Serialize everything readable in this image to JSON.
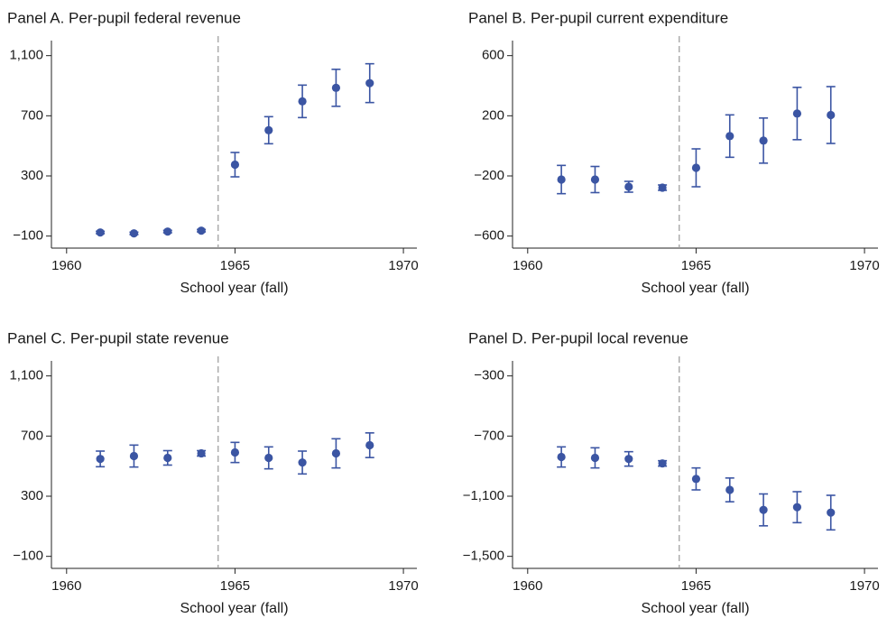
{
  "chart_data": [
    {
      "type": "scatter",
      "title": "Panel A. Per-pupil federal revenue",
      "xlabel": "School year (fall)",
      "x": [
        1961,
        1962,
        1963,
        1964,
        1965,
        1966,
        1967,
        1968,
        1969
      ],
      "values": [
        -76,
        -82,
        -70,
        -64,
        375,
        604,
        796,
        886,
        917
      ],
      "errors": [
        8,
        8,
        8,
        8,
        81,
        90,
        108,
        123,
        129
      ],
      "xlim": [
        1959.55,
        1970.4
      ],
      "xticks": [
        1960,
        1965,
        1970
      ],
      "ylim": [
        -180,
        1200
      ],
      "yticks": [
        {
          "value": -100,
          "label": "−100"
        },
        300,
        700,
        {
          "value": 1100,
          "label": "1,100"
        }
      ],
      "reference_line_x": 1964.5,
      "color": "#3b55a3"
    },
    {
      "type": "scatter",
      "title": "Panel B. Per-pupil current expenditure",
      "xlabel": "School year (fall)",
      "x": [
        1961,
        1962,
        1963,
        1964,
        1965,
        1966,
        1967,
        1968,
        1969
      ],
      "values": [
        -224,
        -224,
        -272,
        -278,
        -146,
        65,
        35,
        215,
        205
      ],
      "errors": [
        94,
        87,
        36,
        18,
        126,
        141,
        150,
        174,
        189
      ],
      "xlim": [
        1959.55,
        1970.4
      ],
      "xticks": [
        1960,
        1965,
        1970
      ],
      "ylim": [
        -680,
        700
      ],
      "yticks": [
        {
          "value": -600,
          "label": "−600"
        },
        {
          "value": -200,
          "label": "−200"
        },
        200,
        600
      ],
      "reference_line_x": 1964.5,
      "color": "#3b55a3"
    },
    {
      "type": "scatter",
      "title": "Panel C. Per-pupil state revenue",
      "xlabel": "School year (fall)",
      "x": [
        1961,
        1962,
        1963,
        1964,
        1965,
        1966,
        1967,
        1968,
        1969
      ],
      "values": [
        548,
        567,
        555,
        585,
        591,
        555,
        524,
        585,
        639
      ],
      "errors": [
        52,
        73,
        48,
        18,
        67,
        73,
        76,
        97,
        82
      ],
      "xlim": [
        1959.55,
        1970.4
      ],
      "xticks": [
        1960,
        1965,
        1970
      ],
      "ylim": [
        -180,
        1200
      ],
      "yticks": [
        {
          "value": -100,
          "label": "−100"
        },
        300,
        700,
        {
          "value": 1100,
          "label": "1,100"
        }
      ],
      "reference_line_x": 1964.5,
      "color": "#3b55a3"
    },
    {
      "type": "scatter",
      "title": "Panel D. Per-pupil local revenue",
      "xlabel": "School year (fall)",
      "x": [
        1961,
        1962,
        1963,
        1964,
        1965,
        1966,
        1967,
        1968,
        1969
      ],
      "values": [
        -839,
        -845,
        -852,
        -882,
        -985,
        -1058,
        -1191,
        -1173,
        -1209
      ],
      "errors": [
        67,
        67,
        48,
        18,
        73,
        79,
        106,
        103,
        115
      ],
      "xlim": [
        1959.55,
        1970.4
      ],
      "xticks": [
        1960,
        1965,
        1970
      ],
      "ylim": [
        -1580,
        -200
      ],
      "yticks": [
        {
          "value": -1500,
          "label": "−1,500"
        },
        {
          "value": -1100,
          "label": "−1,100"
        },
        {
          "value": -700,
          "label": "−700"
        },
        {
          "value": -300,
          "label": "−300"
        }
      ],
      "reference_line_x": 1964.5,
      "color": "#3b55a3"
    }
  ]
}
